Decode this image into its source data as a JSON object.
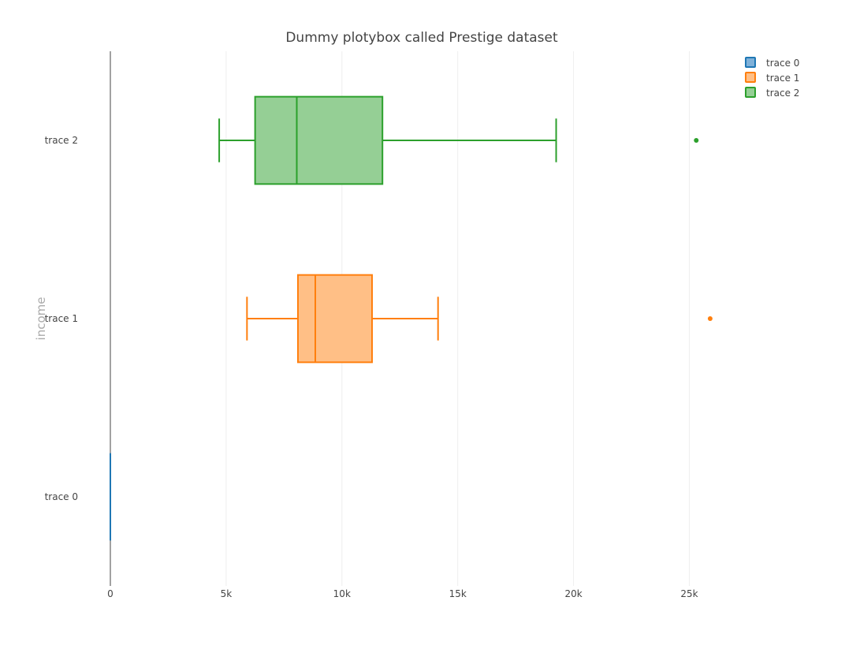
{
  "chart_data": {
    "type": "box",
    "orientation": "horizontal",
    "title": "Dummy plotybox called Prestige dataset",
    "xlabel": "",
    "ylabel": "income",
    "xlim": [
      0,
      29000
    ],
    "x_ticks": [
      0,
      5000,
      10000,
      15000,
      20000,
      25000
    ],
    "x_tick_labels": [
      "0",
      "5k",
      "10k",
      "15k",
      "20k",
      "25k"
    ],
    "categories": [
      "trace 0",
      "trace 1",
      "trace 2"
    ],
    "grid": true,
    "legend_position": "top-right",
    "series": [
      {
        "name": "trace 0",
        "color": "#1f77b4",
        "fill": "#7fb1d9",
        "whisker_low": 0,
        "q1": 0,
        "median": 0,
        "q3": 0,
        "whisker_high": 0,
        "outliers": []
      },
      {
        "name": "trace 1",
        "color": "#ff7f0e",
        "fill": "#ffbf86",
        "whisker_low": 5900,
        "q1": 8100,
        "median": 8850,
        "q3": 11300,
        "whisker_high": 14150,
        "outliers": [
          25900
        ]
      },
      {
        "name": "trace 2",
        "color": "#2ca02c",
        "fill": "#95cf95",
        "whisker_low": 4700,
        "q1": 6250,
        "median": 8050,
        "q3": 11750,
        "whisker_high": 19250,
        "outliers": [
          25300
        ]
      }
    ]
  }
}
